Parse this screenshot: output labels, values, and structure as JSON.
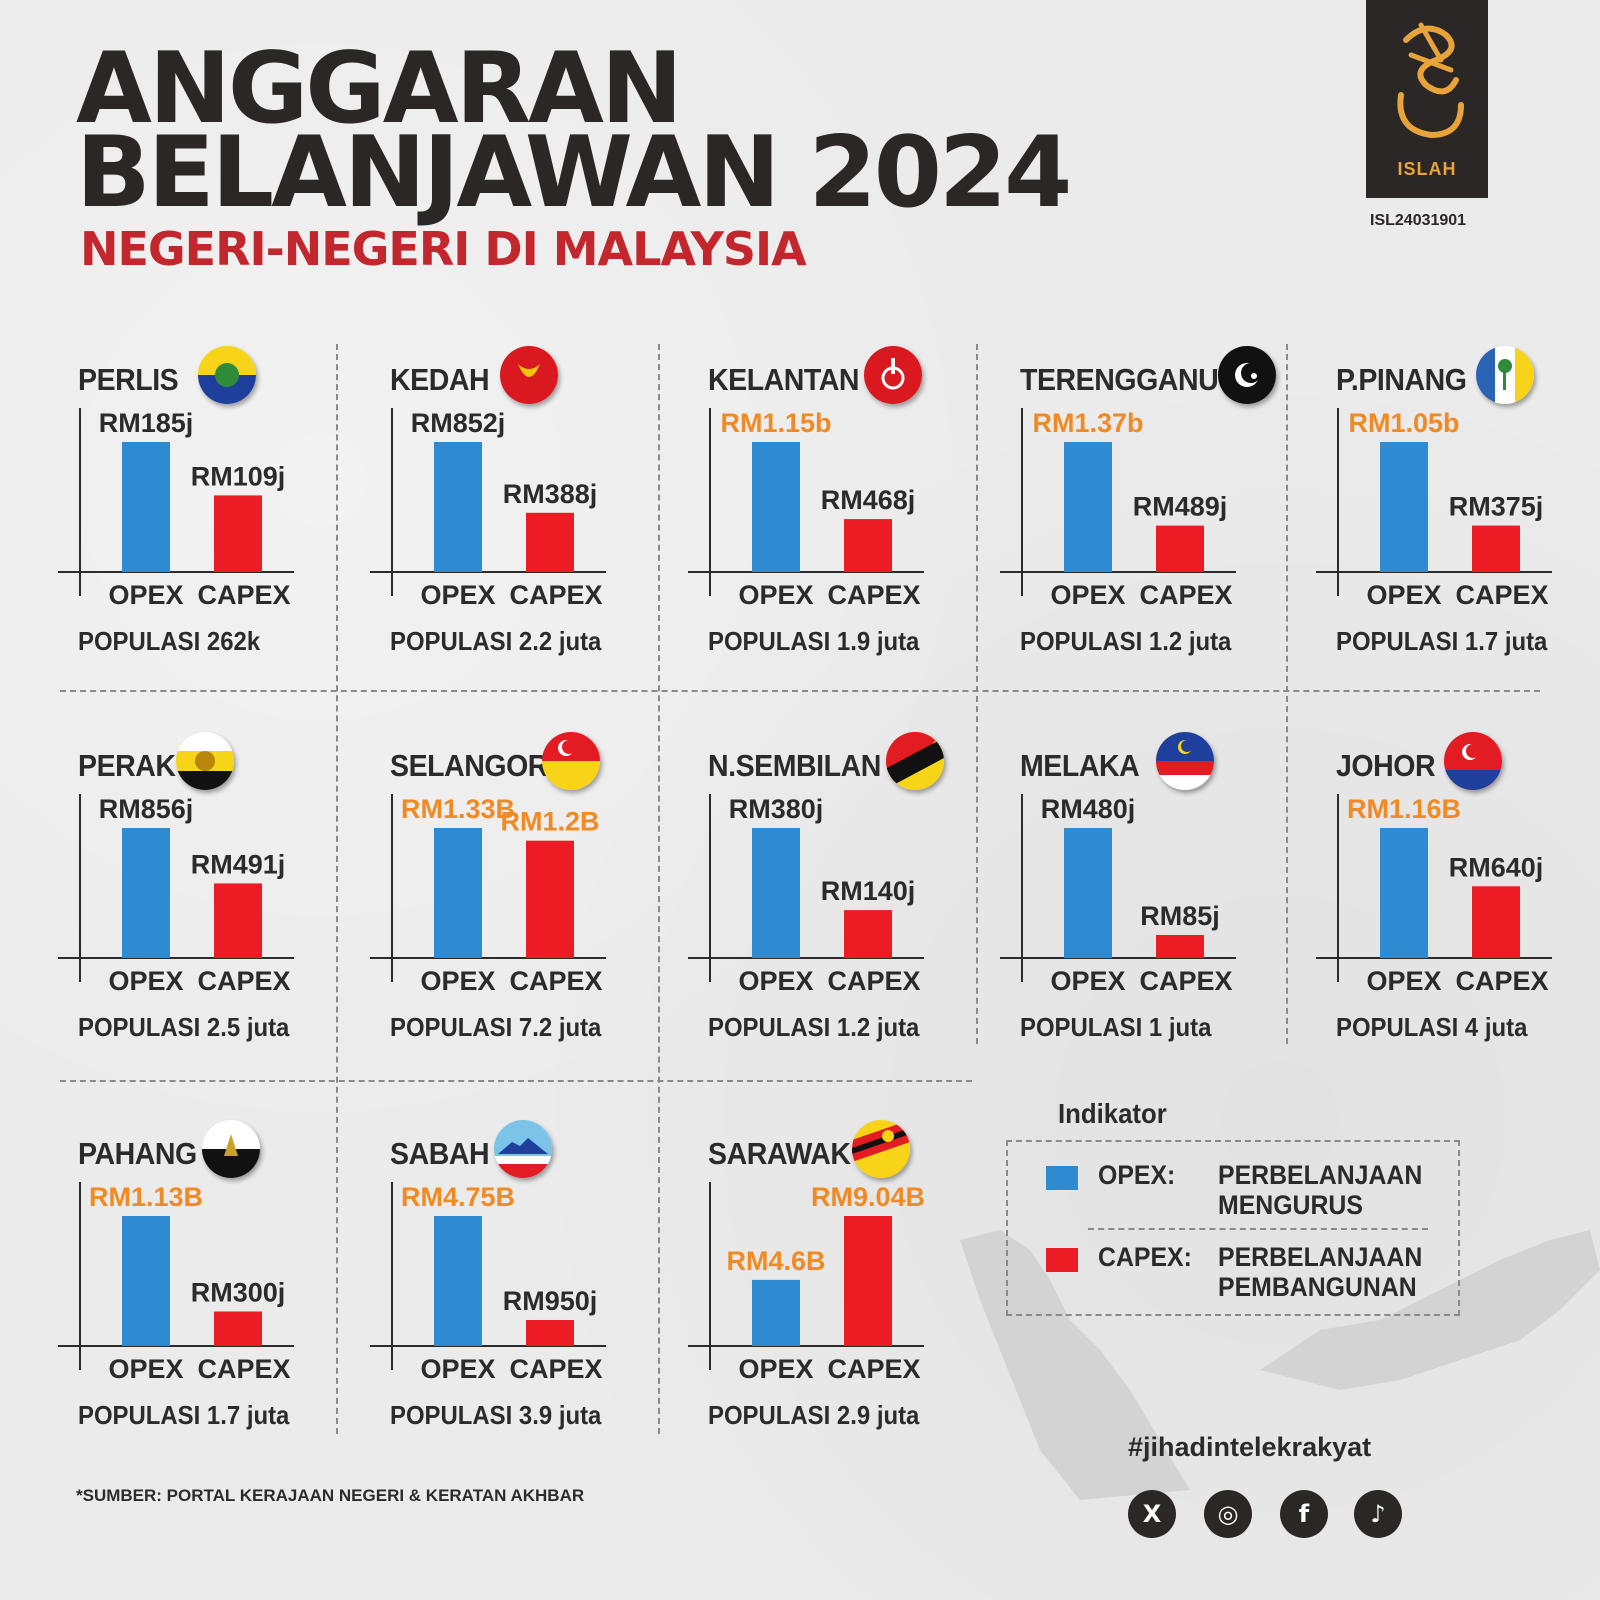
{
  "header": {
    "title_line1": "ANGGARAN",
    "title_line2": "BELANJAWAN 2024",
    "subtitle": "NEGERI-NEGERI DI MALAYSIA",
    "brand": "ISLAH",
    "ref_code": "ISL24031901"
  },
  "colors": {
    "opex": "#2f8bd1",
    "capex": "#ec1c24",
    "highlight": "#f08a24",
    "text": "#2b2b2b"
  },
  "chart_data": {
    "type": "bar",
    "categories": [
      "OPEX",
      "CAPEX"
    ],
    "panels": [
      {
        "state": "PERLIS",
        "opex_label": "RM185j",
        "capex_label": "RM109j",
        "opex": 185,
        "capex": 109,
        "unit": "RM juta",
        "population": "POPULASI 262k",
        "flag": "perlis",
        "highlight_opex": false,
        "highlight_capex": false
      },
      {
        "state": "KEDAH",
        "opex_label": "RM852j",
        "capex_label": "RM388j",
        "opex": 852,
        "capex": 388,
        "unit": "RM juta",
        "population": "POPULASI 2.2 juta",
        "flag": "kedah",
        "highlight_opex": false,
        "highlight_capex": false
      },
      {
        "state": "KELANTAN",
        "opex_label": "RM1.15b",
        "capex_label": "RM468j",
        "opex": 1150,
        "capex": 468,
        "unit": "RM juta",
        "population": "POPULASI 1.9 juta",
        "flag": "kelantan",
        "highlight_opex": true,
        "highlight_capex": false
      },
      {
        "state": "TERENGGANU",
        "opex_label": "RM1.37b",
        "capex_label": "RM489j",
        "opex": 1370,
        "capex": 489,
        "unit": "RM juta",
        "population": "POPULASI 1.2 juta",
        "flag": "terengganu",
        "highlight_opex": true,
        "highlight_capex": false
      },
      {
        "state": "P.PINANG",
        "opex_label": "RM1.05b",
        "capex_label": "RM375j",
        "opex": 1050,
        "capex": 375,
        "unit": "RM juta",
        "population": "POPULASI 1.7 juta",
        "flag": "penang",
        "highlight_opex": true,
        "highlight_capex": false
      },
      {
        "state": "PERAK",
        "opex_label": "RM856j",
        "capex_label": "RM491j",
        "opex": 856,
        "capex": 491,
        "unit": "RM juta",
        "population": "POPULASI 2.5 juta",
        "flag": "perak",
        "highlight_opex": false,
        "highlight_capex": false
      },
      {
        "state": "SELANGOR",
        "opex_label": "RM1.33B",
        "capex_label": "RM1.2B",
        "opex": 1330,
        "capex": 1200,
        "unit": "RM juta",
        "population": "POPULASI 7.2 juta",
        "flag": "selangor",
        "highlight_opex": true,
        "highlight_capex": true
      },
      {
        "state": "N.SEMBILAN",
        "opex_label": "RM380j",
        "capex_label": "RM140j",
        "opex": 380,
        "capex": 140,
        "unit": "RM juta",
        "population": "POPULASI 1.2 juta",
        "flag": "nsembilan",
        "highlight_opex": false,
        "highlight_capex": false
      },
      {
        "state": "MELAKA",
        "opex_label": "RM480j",
        "capex_label": "RM85j",
        "opex": 480,
        "capex": 85,
        "unit": "RM juta",
        "population": "POPULASI 1 juta",
        "flag": "melaka",
        "highlight_opex": false,
        "highlight_capex": false
      },
      {
        "state": "JOHOR",
        "opex_label": "RM1.16B",
        "capex_label": "RM640j",
        "opex": 1160,
        "capex": 640,
        "unit": "RM juta",
        "population": "POPULASI 4 juta",
        "flag": "johor",
        "highlight_opex": true,
        "highlight_capex": false
      },
      {
        "state": "PAHANG",
        "opex_label": "RM1.13B",
        "capex_label": "RM300j",
        "opex": 1130,
        "capex": 300,
        "unit": "RM juta",
        "population": "POPULASI 1.7 juta",
        "flag": "pahang",
        "highlight_opex": true,
        "highlight_capex": false
      },
      {
        "state": "SABAH",
        "opex_label": "RM4.75B",
        "capex_label": "RM950j",
        "opex": 4750,
        "capex": 950,
        "unit": "RM juta",
        "population": "POPULASI 3.9 juta",
        "flag": "sabah",
        "highlight_opex": true,
        "highlight_capex": false
      },
      {
        "state": "SARAWAK",
        "opex_label": "RM4.6B",
        "capex_label": "RM9.04B",
        "opex": 4600,
        "capex": 9040,
        "unit": "RM juta",
        "population": "POPULASI 2.9 juta",
        "flag": "sarawak",
        "highlight_opex": true,
        "highlight_capex": true
      }
    ]
  },
  "legend": {
    "title": "Indikator",
    "opex_code": "OPEX:",
    "opex_desc": "PERBELANJAAN MENGURUS",
    "capex_code": "CAPEX:",
    "capex_desc": "PERBELANJAAN PEMBANGUNAN"
  },
  "footer": {
    "hashtag": "#jihadintelekrakyat",
    "source": "*SUMBER: PORTAL KERAJAAN NEGERI & KERATAN AKHBAR",
    "socials": [
      {
        "name": "x",
        "glyph": "X"
      },
      {
        "name": "instagram",
        "glyph": "◎"
      },
      {
        "name": "facebook",
        "glyph": "f"
      },
      {
        "name": "tiktok",
        "glyph": "♪"
      }
    ]
  }
}
